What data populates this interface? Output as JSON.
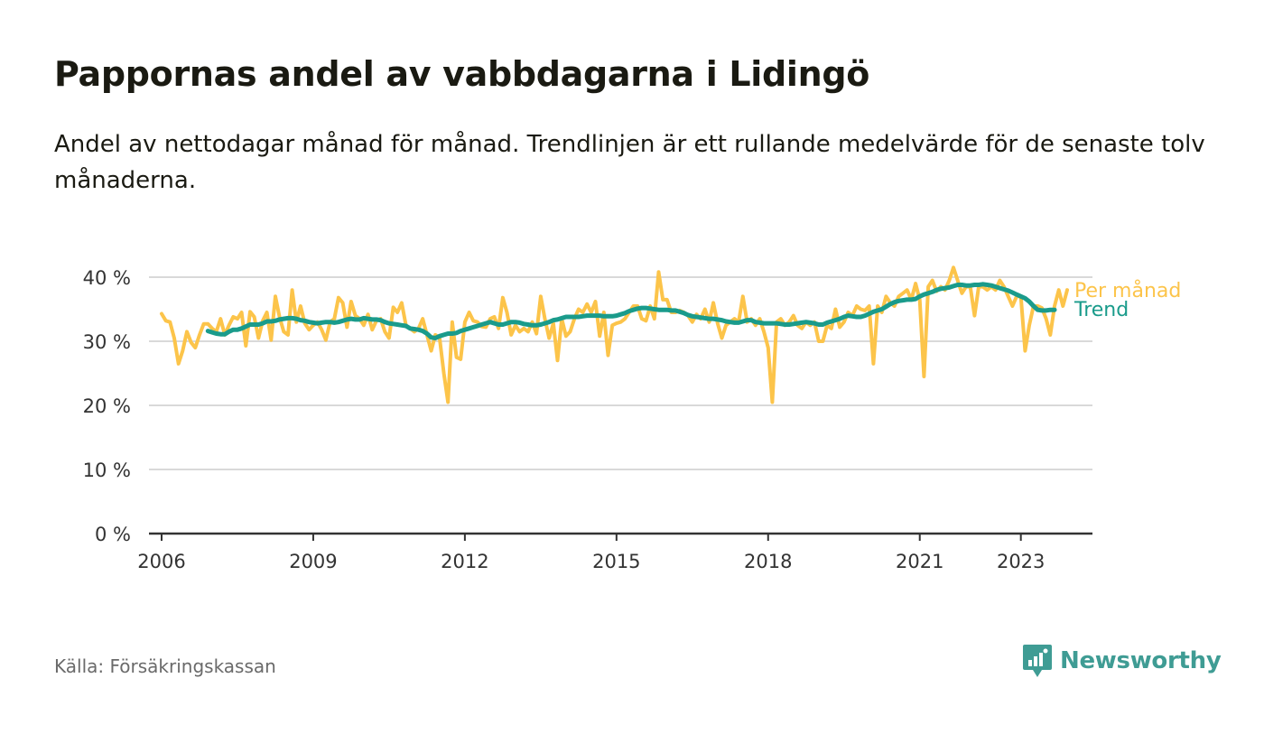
{
  "header": {
    "title": "Pappornas andel av vabbdagarna i Lidingö",
    "subtitle": "Andel av nettodagar månad för månad. Trendlinjen är ett rullande medelvärde för de senaste tolv månaderna."
  },
  "footer": {
    "source": "Källa: Försäkringskassan",
    "brand": "Newsworthy"
  },
  "colors": {
    "monthly": "#fcc44a",
    "trend": "#1a9b8b",
    "brand": "#3f9c94",
    "grid": "#d9d9d9",
    "axis": "#333333"
  },
  "chart_data": {
    "type": "line",
    "x_axis": {
      "type": "date",
      "range": [
        "2005-10",
        "2024-06"
      ],
      "ticks": [
        "2006",
        "2009",
        "2012",
        "2015",
        "2018",
        "2021",
        "2023"
      ]
    },
    "y_axis": {
      "range": [
        0,
        40
      ],
      "ticks": [
        0,
        10,
        20,
        30,
        40
      ],
      "tick_labels": [
        "0 %",
        "10 %",
        "20 %",
        "30 %",
        "40 %"
      ]
    },
    "grid": "horizontal",
    "legend": "direct labels at line ends",
    "series": [
      {
        "name": "Per månad",
        "color": "#fcc44a",
        "start": "2006-01",
        "values": [
          34.3,
          33.2,
          33.0,
          30.5,
          26.5,
          28.5,
          31.5,
          29.8,
          29.0,
          31.0,
          32.7,
          32.7,
          32.0,
          31.5,
          33.5,
          31.0,
          32.5,
          33.8,
          33.5,
          34.5,
          29.3,
          34.6,
          33.8,
          30.5,
          33.2,
          34.5,
          30.2,
          37.0,
          33.8,
          31.5,
          31.0,
          38.0,
          33.0,
          35.5,
          32.8,
          31.8,
          32.5,
          33.0,
          31.8,
          30.2,
          33.0,
          33.5,
          36.8,
          36.0,
          32.2,
          36.2,
          34.0,
          33.5,
          32.5,
          34.2,
          31.8,
          33.2,
          33.5,
          31.5,
          30.5,
          35.3,
          34.5,
          36.0,
          32.5,
          32.0,
          31.5,
          32.0,
          33.5,
          31.0,
          28.5,
          31.0,
          30.5,
          25.0,
          20.5,
          33.0,
          27.5,
          27.2,
          33.0,
          34.5,
          33.2,
          33.0,
          32.3,
          32.2,
          33.5,
          33.8,
          32.0,
          36.8,
          34.5,
          31.0,
          32.5,
          31.5,
          32.0,
          31.5,
          33.0,
          31.2,
          37.0,
          33.5,
          30.5,
          32.8,
          27.0,
          33.5,
          30.8,
          31.5,
          33.5,
          35.0,
          34.5,
          35.8,
          34.5,
          36.2,
          30.8,
          34.5,
          27.8,
          32.5,
          32.8,
          33.0,
          33.5,
          34.5,
          35.5,
          35.5,
          33.5,
          33.2,
          35.5,
          33.5,
          40.8,
          36.5,
          36.5,
          34.5,
          34.5,
          34.8,
          34.5,
          34.0,
          33.0,
          34.2,
          33.5,
          35.0,
          33.0,
          36.0,
          32.8,
          30.5,
          32.5,
          33.0,
          33.5,
          33.0,
          37.0,
          33.0,
          33.5,
          32.5,
          33.5,
          31.5,
          29.0,
          20.5,
          33.0,
          33.5,
          32.5,
          33.0,
          34.0,
          32.5,
          32.0,
          33.0,
          32.5,
          33.0,
          30.0,
          30.0,
          32.5,
          32.0,
          35.0,
          32.2,
          33.0,
          34.5,
          34.0,
          35.5,
          35.0,
          34.8,
          35.5,
          26.5,
          35.5,
          34.5,
          37.0,
          36.0,
          35.5,
          37.0,
          37.5,
          38.0,
          36.5,
          39.0,
          36.5,
          24.5,
          38.5,
          39.5,
          37.8,
          38.5,
          38.0,
          39.5,
          41.5,
          39.5,
          37.5,
          38.5,
          38.5,
          34.0,
          38.5,
          38.5,
          38.0,
          38.5,
          38.0,
          39.5,
          38.5,
          37.0,
          35.5,
          37.0,
          37.0,
          28.5,
          32.5,
          35.5,
          35.5,
          35.2,
          33.5,
          31.0,
          35.5,
          38.0,
          35.5,
          38.0
        ]
      },
      {
        "name": "Trend",
        "color": "#1a9b8b",
        "start": "2006-12",
        "values": [
          31.6,
          31.4,
          31.2,
          31.1,
          31.1,
          31.5,
          31.8,
          31.8,
          32.0,
          32.3,
          32.6,
          32.6,
          32.6,
          32.8,
          33.1,
          33.1,
          33.2,
          33.4,
          33.5,
          33.6,
          33.6,
          33.5,
          33.3,
          33.2,
          33.0,
          32.9,
          32.8,
          32.9,
          33.0,
          33.0,
          32.9,
          33.0,
          33.2,
          33.4,
          33.5,
          33.4,
          33.4,
          33.6,
          33.5,
          33.4,
          33.4,
          33.3,
          33.0,
          32.8,
          32.7,
          32.6,
          32.5,
          32.4,
          32.0,
          31.9,
          31.8,
          31.6,
          31.2,
          30.6,
          30.5,
          30.8,
          31.0,
          31.2,
          31.2,
          31.3,
          31.6,
          31.8,
          32.0,
          32.2,
          32.4,
          32.6,
          32.8,
          33.0,
          32.8,
          32.6,
          32.6,
          32.8,
          33.0,
          33.0,
          32.9,
          32.7,
          32.6,
          32.5,
          32.5,
          32.6,
          32.8,
          33.0,
          33.3,
          33.4,
          33.6,
          33.8,
          33.8,
          33.8,
          33.8,
          33.9,
          34.0,
          34.0,
          34.0,
          34.0,
          33.9,
          33.9,
          33.9,
          34.0,
          34.2,
          34.4,
          34.7,
          34.9,
          35.1,
          35.2,
          35.2,
          35.1,
          35.0,
          34.9,
          34.9,
          34.9,
          34.8,
          34.8,
          34.6,
          34.4,
          34.1,
          33.9,
          33.8,
          33.7,
          33.6,
          33.5,
          33.5,
          33.4,
          33.3,
          33.1,
          33.0,
          32.9,
          32.9,
          33.1,
          33.3,
          33.3,
          33.0,
          32.9,
          32.8,
          32.8,
          32.8,
          32.8,
          32.7,
          32.6,
          32.6,
          32.7,
          32.8,
          32.9,
          33.0,
          32.9,
          32.8,
          32.6,
          32.6,
          32.9,
          33.1,
          33.3,
          33.5,
          33.8,
          34.0,
          33.9,
          33.8,
          33.8,
          34.0,
          34.3,
          34.6,
          34.8,
          35.0,
          35.4,
          35.8,
          36.1,
          36.3,
          36.4,
          36.5,
          36.5,
          36.6,
          37.0,
          37.3,
          37.5,
          37.7,
          38.0,
          38.2,
          38.3,
          38.4,
          38.6,
          38.8,
          38.8,
          38.7,
          38.7,
          38.8,
          38.8,
          38.9,
          38.8,
          38.7,
          38.5,
          38.3,
          38.1,
          37.9,
          37.6,
          37.3,
          37.0,
          36.7,
          36.2,
          35.5,
          34.9,
          34.8,
          34.8,
          34.9,
          34.9
        ]
      }
    ],
    "annotations": [
      "Per månad",
      "Trend"
    ]
  }
}
